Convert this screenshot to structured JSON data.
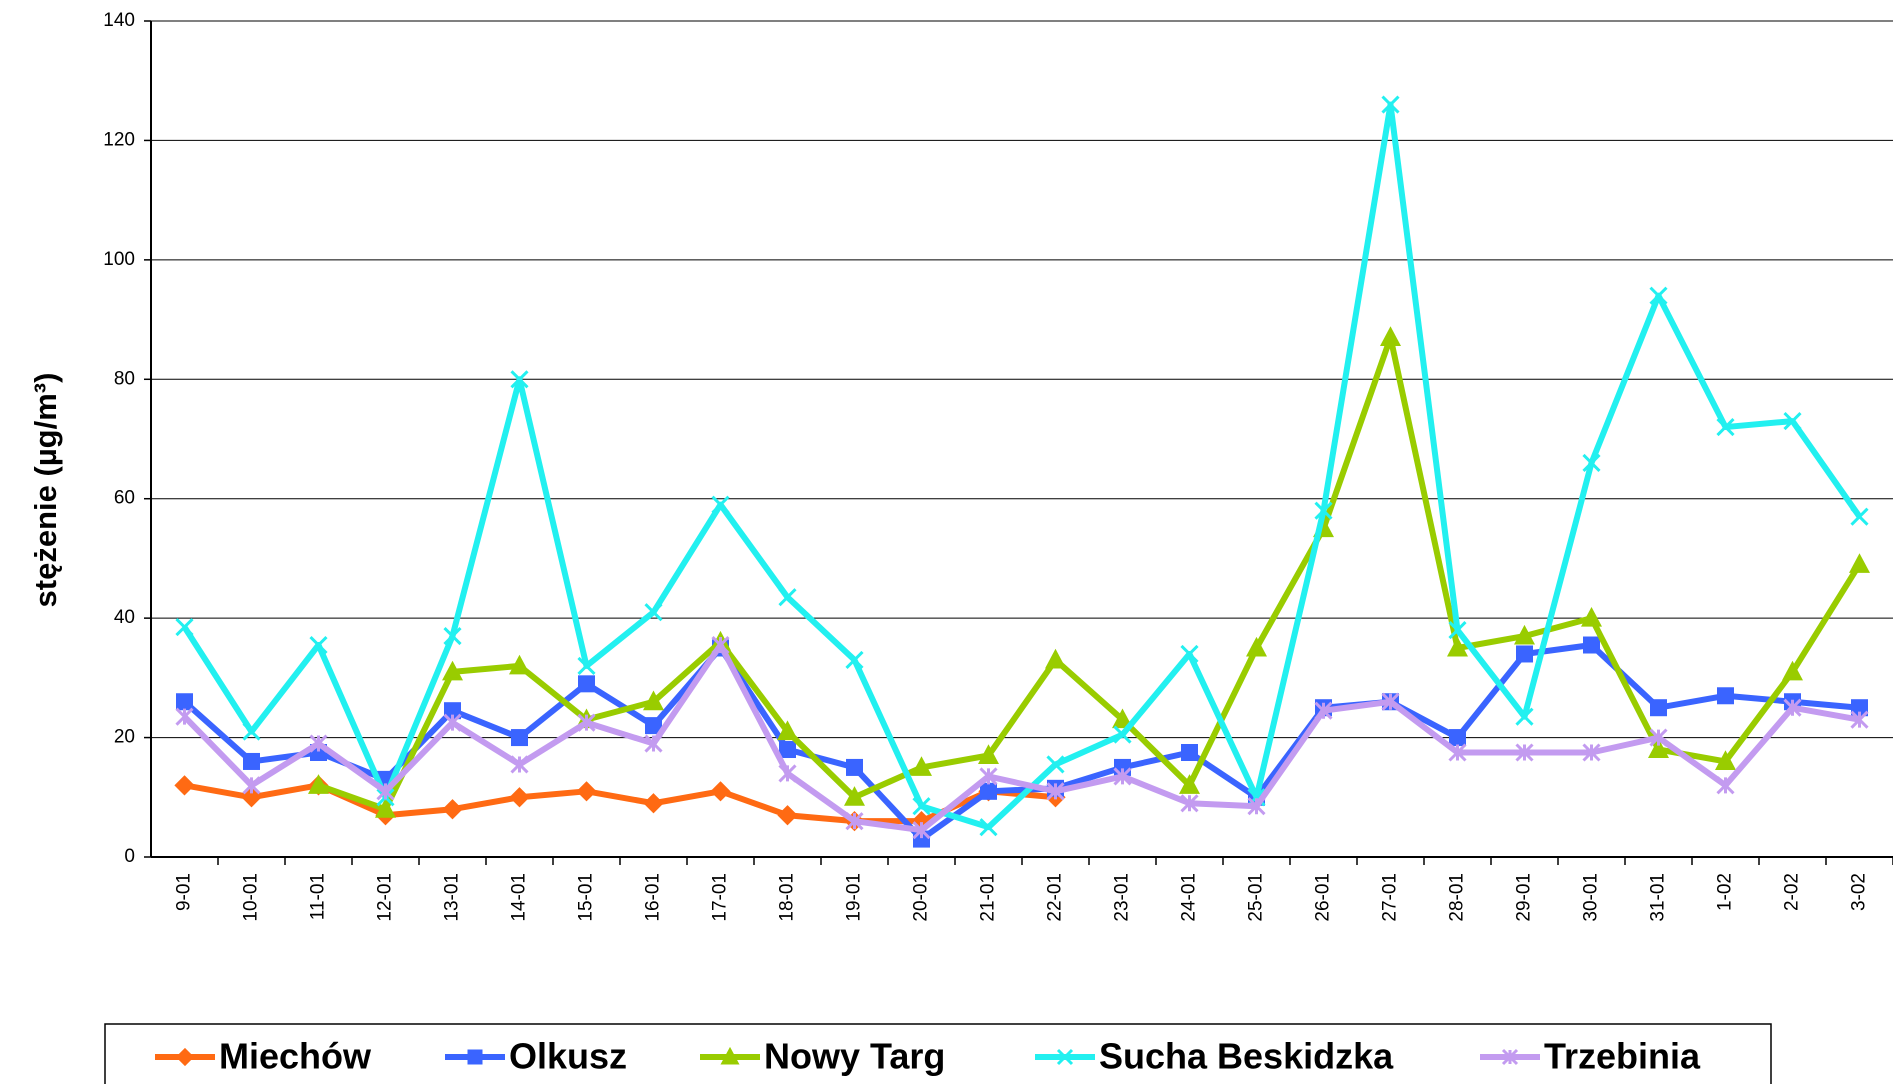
{
  "chart_data": {
    "type": "line",
    "ylabel": "stężenie (µg/m³)",
    "categories": [
      "9-01",
      "10-01",
      "11-01",
      "12-01",
      "13-01",
      "14-01",
      "15-01",
      "16-01",
      "17-01",
      "18-01",
      "19-01",
      "20-01",
      "21-01",
      "22-01",
      "23-01",
      "24-01",
      "25-01",
      "26-01",
      "27-01",
      "28-01",
      "29-01",
      "30-01",
      "31-01",
      "1-02",
      "2-02",
      "3-02"
    ],
    "ylim": [
      0,
      140
    ],
    "yticks": [
      0,
      20,
      40,
      60,
      80,
      100,
      120,
      140
    ],
    "grid": true,
    "legend": "bottom",
    "series": [
      {
        "name": "Miechów",
        "color": "#ff6a13",
        "marker": "diamond",
        "values": [
          12,
          10,
          12,
          7,
          8,
          10,
          11,
          9,
          11,
          7,
          6,
          6,
          11,
          10,
          null,
          null,
          null,
          null,
          null,
          null,
          null,
          null,
          null,
          null,
          null,
          null
        ]
      },
      {
        "name": "Olkusz",
        "color": "#3a64ff",
        "marker": "square",
        "values": [
          26,
          16,
          17.5,
          13,
          24.5,
          20,
          29,
          22,
          35,
          18,
          15,
          3,
          11,
          11.5,
          15,
          17.5,
          10,
          25,
          26,
          20,
          34,
          35.5,
          25,
          27,
          26,
          25
        ]
      },
      {
        "name": "Nowy Targ",
        "color": "#99cc00",
        "marker": "triangle",
        "values": [
          null,
          null,
          12,
          8,
          31,
          32,
          23,
          26,
          36,
          21,
          10,
          15,
          17,
          33,
          23,
          12,
          35,
          55,
          87,
          35,
          37,
          40,
          18,
          16,
          31,
          49
        ]
      },
      {
        "name": "Sucha Beskidzka",
        "color": "#22f0f0",
        "marker": "x",
        "values": [
          38.5,
          21,
          35.5,
          10,
          37,
          80,
          32,
          41,
          59,
          43.5,
          33,
          8.5,
          5,
          15.5,
          20.5,
          34,
          10,
          58,
          126,
          38,
          23.5,
          66,
          94,
          72,
          73,
          57
        ]
      },
      {
        "name": "Trzebinia",
        "color": "#c39bf0",
        "marker": "star",
        "values": [
          23.5,
          12,
          19,
          11,
          22.5,
          15.5,
          22.5,
          19,
          35.5,
          14,
          6,
          4.5,
          13.5,
          11,
          13.5,
          9,
          8.5,
          24.5,
          26,
          17.5,
          17.5,
          17.5,
          20,
          12,
          25,
          23
        ]
      }
    ]
  }
}
